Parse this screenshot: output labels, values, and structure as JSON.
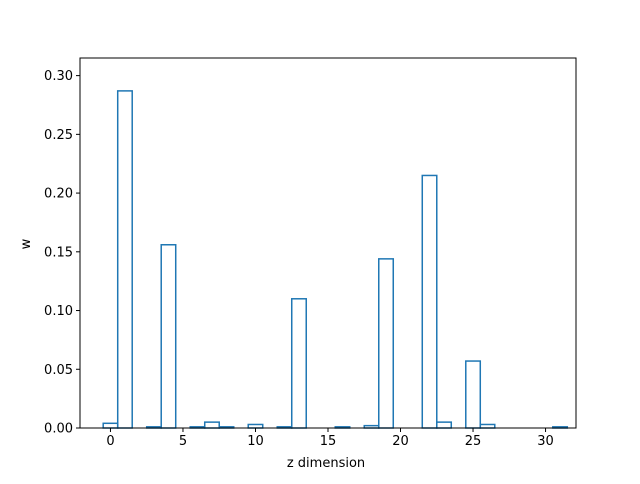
{
  "chart_data": {
    "type": "bar",
    "style": "step-histogram",
    "title": "",
    "xlabel": "z dimension",
    "ylabel": "w",
    "xlim": [
      -2.1,
      32.1
    ],
    "ylim": [
      0,
      0.315
    ],
    "grid": false,
    "legend": "none",
    "bar_color": "#1f77b4",
    "x_ticks": [
      0,
      5,
      10,
      15,
      20,
      25,
      30
    ],
    "x_tick_labels": [
      "0",
      "5",
      "10",
      "15",
      "20",
      "25",
      "30"
    ],
    "y_ticks": [
      0,
      0.05,
      0.1,
      0.15,
      0.2,
      0.25,
      0.3
    ],
    "y_tick_labels": [
      "0.00",
      "0.05",
      "0.10",
      "0.15",
      "0.20",
      "0.25",
      "0.30"
    ],
    "x": [
      0,
      1,
      2,
      3,
      4,
      5,
      6,
      7,
      8,
      9,
      10,
      11,
      12,
      13,
      14,
      15,
      16,
      17,
      18,
      19,
      20,
      21,
      22,
      23,
      24,
      25,
      26,
      27,
      28,
      29,
      30,
      31
    ],
    "values": [
      0.004,
      0.287,
      0.0,
      0.001,
      0.156,
      0.0,
      0.001,
      0.005,
      0.001,
      0.0,
      0.003,
      0.0,
      0.001,
      0.11,
      0.0,
      0.0,
      0.001,
      0.0,
      0.002,
      0.144,
      0.0,
      0.0,
      0.215,
      0.005,
      0.0,
      0.057,
      0.003,
      0.0,
      0.0,
      0.0,
      0.0,
      0.001
    ]
  }
}
